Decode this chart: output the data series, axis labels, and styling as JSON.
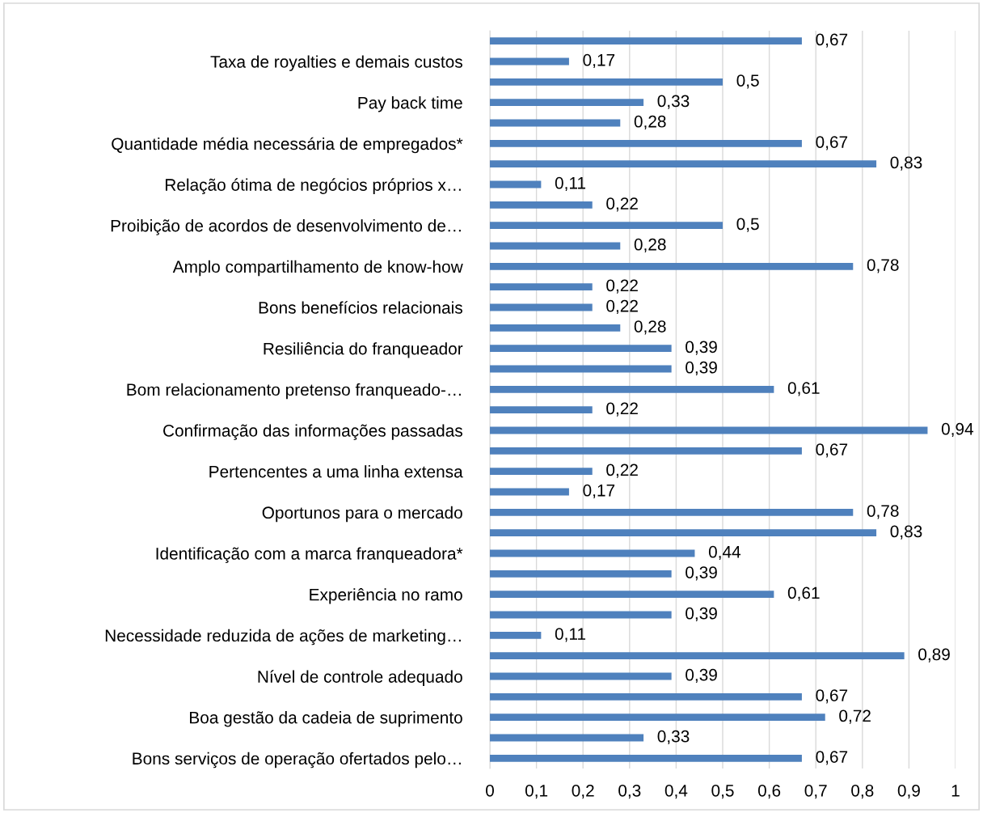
{
  "chart_data": {
    "type": "bar",
    "orientation": "horizontal",
    "categories": [
      null,
      "Taxa de royalties e demais custos",
      null,
      "Pay back time",
      null,
      "Quantidade média necessária de empregados*",
      null,
      "Relação ótima de negócios próprios x…",
      null,
      "Proibição de acordos de desenvolvimento de…",
      null,
      "Amplo compartilhamento de know-how",
      null,
      "Bons benefícios relacionais",
      null,
      "Resiliência do franqueador",
      null,
      "Bom relacionamento pretenso franqueado-…",
      null,
      "Confirmação das informações passadas",
      null,
      "Pertencentes a uma linha extensa",
      null,
      "Oportunos para o mercado",
      null,
      "Identificação com a marca franqueadora*",
      null,
      "Experiência no ramo",
      null,
      "Necessidade reduzida de ações de marketing…",
      null,
      "Nível de controle adequado",
      null,
      "Boa gestão da cadeia de suprimento",
      null,
      "Bons serviços de operação ofertados pelo…"
    ],
    "values": [
      0.67,
      0.17,
      0.5,
      0.33,
      0.28,
      0.67,
      0.83,
      0.11,
      0.22,
      0.5,
      0.28,
      0.78,
      0.22,
      0.22,
      0.28,
      0.39,
      0.39,
      0.61,
      0.22,
      0.94,
      0.67,
      0.22,
      0.17,
      0.78,
      0.83,
      0.44,
      0.39,
      0.61,
      0.39,
      0.11,
      0.89,
      0.39,
      0.67,
      0.72,
      0.33,
      0.67
    ],
    "value_labels": [
      "0,67",
      "0,17",
      "0,5",
      "0,33",
      "0,28",
      "0,67",
      "0,83",
      "0,11",
      "0,22",
      "0,5",
      "0,28",
      "0,78",
      "0,22",
      "0,22",
      "0,28",
      "0,39",
      "0,39",
      "0,61",
      "0,22",
      "0,94",
      "0,67",
      "0,22",
      "0,17",
      "0,78",
      "0,83",
      "0,44",
      "0,39",
      "0,61",
      "0,39",
      "0,11",
      "0,89",
      "0,39",
      "0,67",
      "0,72",
      "0,33",
      "0,67"
    ],
    "color": "#4f81bd",
    "xlim": [
      0,
      1
    ],
    "xticks": [
      0,
      {
        "value": 0.1,
        "label": "0,1"
      },
      {
        "value": 0.2,
        "label": "0,2"
      },
      {
        "value": 0.3,
        "label": "0,3"
      },
      {
        "value": 0.4,
        "label": "0,4"
      },
      {
        "value": 0.5,
        "label": "0,5"
      },
      {
        "value": 0.6,
        "label": "0,6"
      },
      {
        "value": 0.7,
        "label": "0,7"
      },
      {
        "value": 0.8,
        "label": "0,8"
      },
      {
        "value": 0.9,
        "label": "0,9"
      },
      1
    ],
    "grid": "x",
    "legend": false
  }
}
